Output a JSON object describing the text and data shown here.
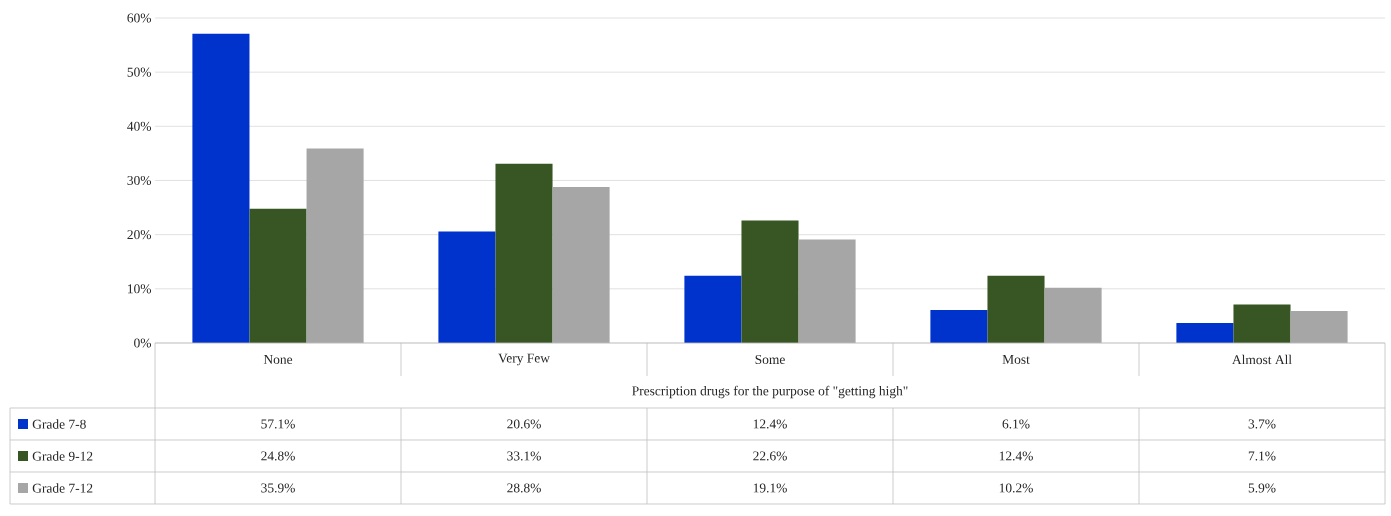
{
  "chart_data": {
    "type": "bar",
    "xlabel": "Prescription drugs for the purpose of \"getting high\"",
    "categories": [
      "None",
      "Very Few",
      "Some",
      "Most",
      "Almost All"
    ],
    "series": [
      {
        "name": "Grade  7-8",
        "color": "#0033cc",
        "values": [
          57.1,
          20.6,
          12.4,
          6.1,
          3.7
        ],
        "value_labels": [
          "57.1%",
          "20.6%",
          "12.4%",
          "6.1%",
          "3.7%"
        ]
      },
      {
        "name": "Grade  9-12",
        "color": "#375623",
        "values": [
          24.8,
          33.1,
          22.6,
          12.4,
          7.1
        ],
        "value_labels": [
          "24.8%",
          "33.1%",
          "22.6%",
          "12.4%",
          "7.1%"
        ]
      },
      {
        "name": "Grade  7-12",
        "color": "#a6a6a6",
        "values": [
          35.9,
          28.8,
          19.1,
          10.2,
          5.9
        ],
        "value_labels": [
          "35.9%",
          "28.8%",
          "19.1%",
          "10.2%",
          "5.9%"
        ]
      }
    ],
    "ylim": [
      0,
      60
    ],
    "yticks": [
      {
        "value": 0,
        "label": "0%"
      },
      {
        "value": 10,
        "label": "10%"
      },
      {
        "value": 20,
        "label": "20%"
      },
      {
        "value": 30,
        "label": "30%"
      },
      {
        "value": 40,
        "label": "40%"
      },
      {
        "value": 50,
        "label": "50%"
      },
      {
        "value": 60,
        "label": "60%"
      }
    ],
    "grid": "y",
    "legend": "bottom"
  }
}
